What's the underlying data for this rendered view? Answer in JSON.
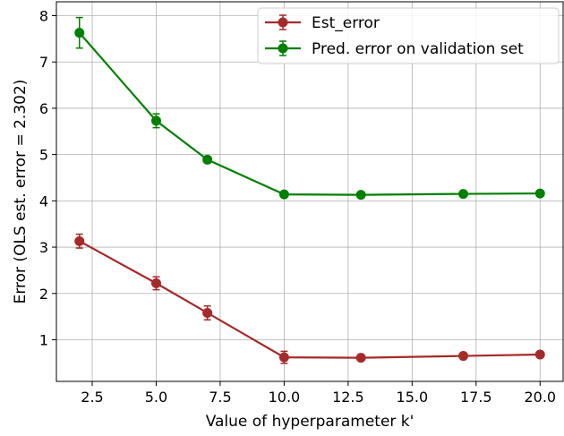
{
  "chart_data": {
    "type": "line",
    "xlabel": "Value of hyperparameter k'",
    "ylabel": "Error (OLS est. error = 2.302)",
    "xlim": [
      1.1,
      20.9
    ],
    "ylim": [
      0.1,
      8.3
    ],
    "xticks": [
      2.5,
      5.0,
      7.5,
      10.0,
      12.5,
      15.0,
      17.5,
      20.0
    ],
    "xtick_labels": [
      "2.5",
      "5.0",
      "7.5",
      "10.0",
      "12.5",
      "15.0",
      "17.5",
      "20.0"
    ],
    "yticks": [
      1,
      2,
      3,
      4,
      5,
      6,
      7,
      8
    ],
    "ytick_labels": [
      "1",
      "2",
      "3",
      "4",
      "5",
      "6",
      "7",
      "8"
    ],
    "grid": true,
    "legend_position": "top-right",
    "series": [
      {
        "name": "Est_error",
        "color": "#a52a2a",
        "points": [
          {
            "x": 2,
            "y": 3.13,
            "err": 0.15
          },
          {
            "x": 5,
            "y": 2.22,
            "err": 0.14
          },
          {
            "x": 7,
            "y": 1.58,
            "err": 0.15
          },
          {
            "x": 10,
            "y": 0.62,
            "err": 0.13
          },
          {
            "x": 13,
            "y": 0.61,
            "err": 0.03
          },
          {
            "x": 17,
            "y": 0.65,
            "err": 0.03
          },
          {
            "x": 20,
            "y": 0.68,
            "err": 0.03
          }
        ]
      },
      {
        "name": "Pred. error on validation set",
        "color": "#008000",
        "points": [
          {
            "x": 2,
            "y": 7.63,
            "err": 0.33
          },
          {
            "x": 5,
            "y": 5.73,
            "err": 0.15
          },
          {
            "x": 7,
            "y": 4.89,
            "err": 0.07
          },
          {
            "x": 10,
            "y": 4.14,
            "err": 0.03
          },
          {
            "x": 13,
            "y": 4.13,
            "err": 0.02
          },
          {
            "x": 17,
            "y": 4.15,
            "err": 0.02
          },
          {
            "x": 20,
            "y": 4.16,
            "err": 0.02
          }
        ]
      }
    ]
  }
}
